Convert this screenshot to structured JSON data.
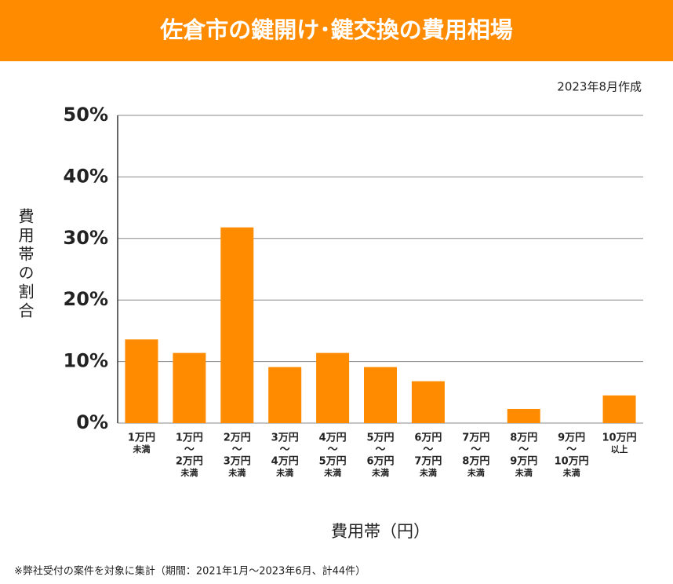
{
  "chart_data": {
    "type": "bar",
    "title": "佐倉市の鍵開け･鍵交換の費用相場",
    "subtitle": "2023年8月作成",
    "y_label": "費用帯の割合",
    "x_label": "費用帯（円）",
    "footnote": "※弊社受付の案件を対象に集計（期間：2021年1月～2023年6月、計44件）",
    "categories": [
      [
        "1万円",
        "未満"
      ],
      [
        "1万円",
        "～",
        "2万円",
        "未満"
      ],
      [
        "2万円",
        "～",
        "3万円",
        "未満"
      ],
      [
        "3万円",
        "～",
        "4万円",
        "未満"
      ],
      [
        "4万円",
        "～",
        "5万円",
        "未満"
      ],
      [
        "5万円",
        "～",
        "6万円",
        "未満"
      ],
      [
        "6万円",
        "～",
        "7万円",
        "未満"
      ],
      [
        "7万円",
        "～",
        "8万円",
        "未満"
      ],
      [
        "8万円",
        "～",
        "9万円",
        "未満"
      ],
      [
        "9万円",
        "～",
        "10万円",
        "未満"
      ],
      [
        "10万円",
        "以上"
      ]
    ],
    "values": [
      13.6,
      11.4,
      31.8,
      9.1,
      11.4,
      9.1,
      6.8,
      0,
      2.3,
      0,
      4.5
    ],
    "color": "#ff8c00",
    "ylim": [
      0,
      50
    ],
    "yticks": [
      {
        "value": 0,
        "label": "0%"
      },
      {
        "value": 10,
        "label": "10%"
      },
      {
        "value": 20,
        "label": "20%"
      },
      {
        "value": 30,
        "label": "30%"
      },
      {
        "value": 40,
        "label": "40%"
      },
      {
        "value": 50,
        "label": "50%"
      }
    ],
    "grid": true
  }
}
